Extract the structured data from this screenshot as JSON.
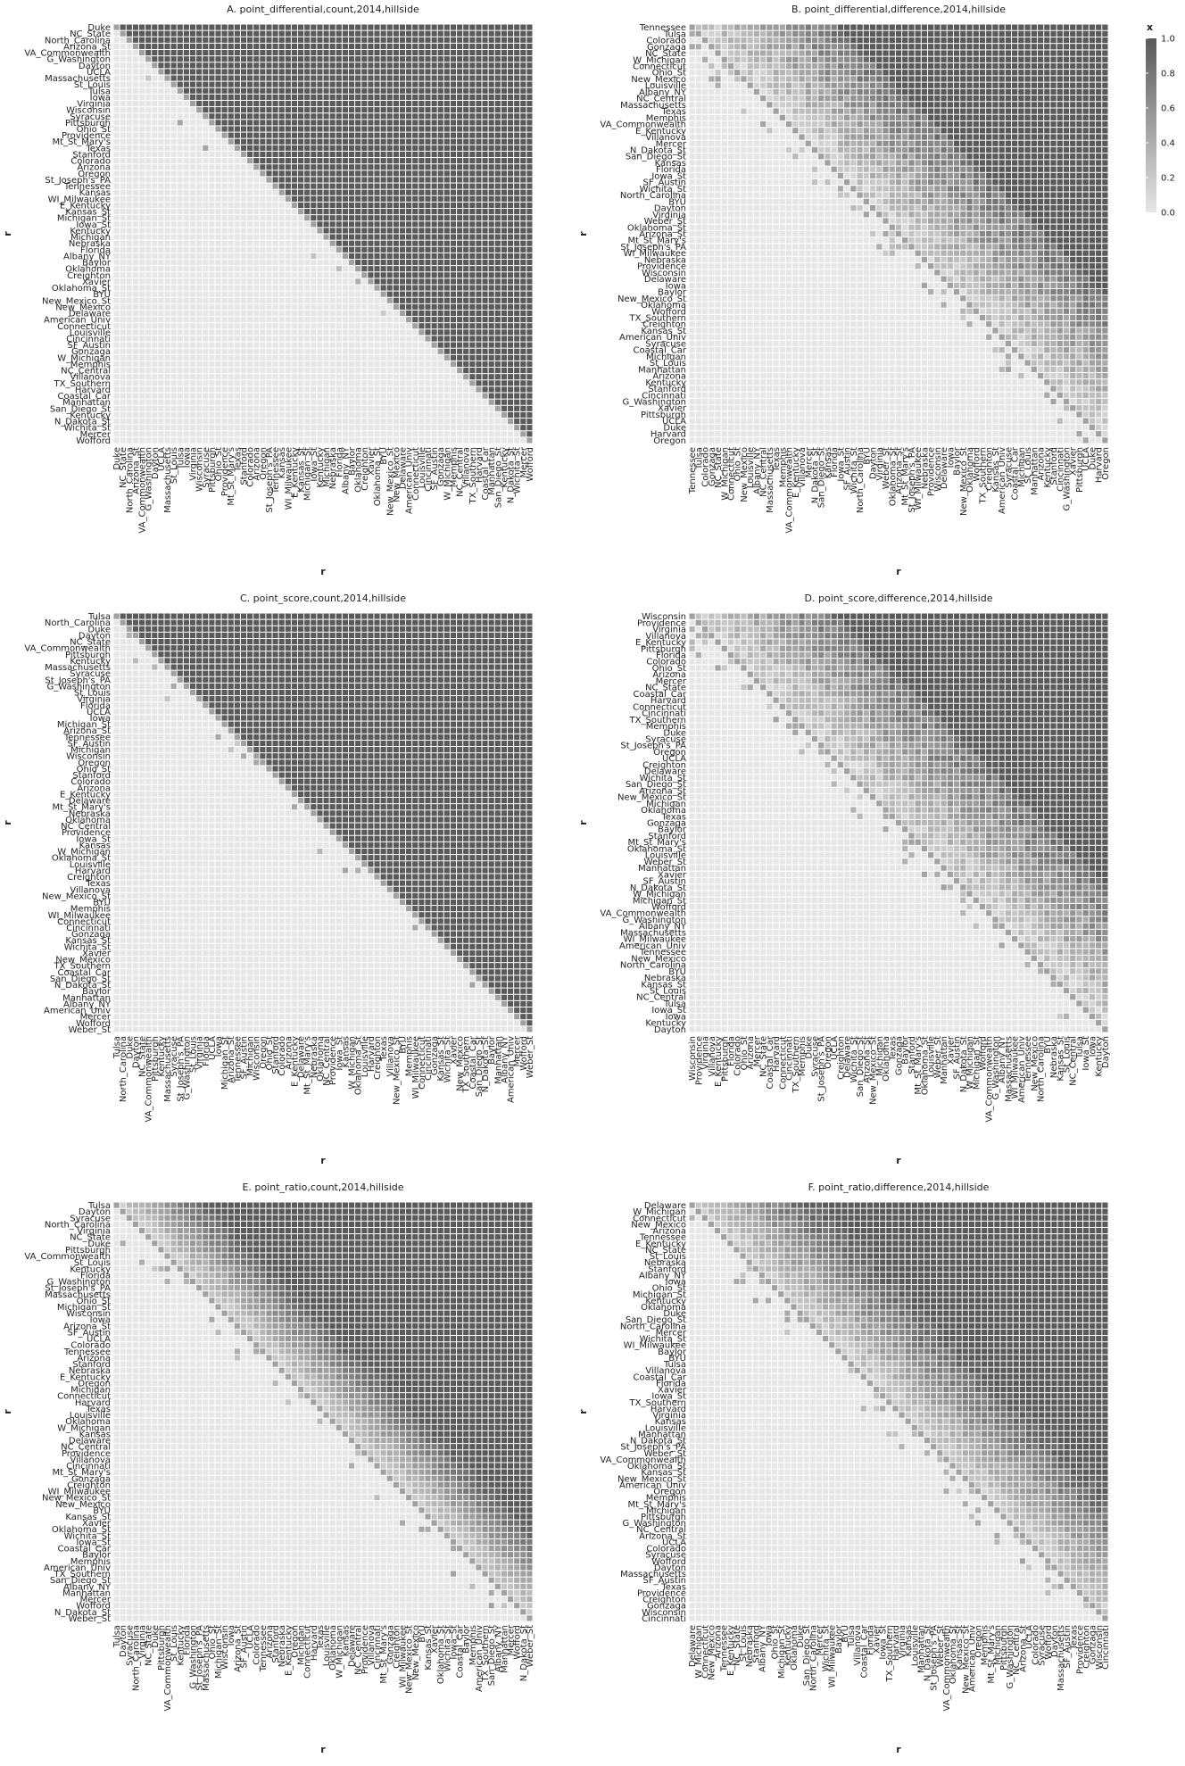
{
  "legend": {
    "title": "x",
    "ticks": [
      "1.0",
      "0.8",
      "0.6",
      "0.4",
      "0.2",
      "0.0"
    ],
    "values": [
      1.0,
      0.8,
      0.6,
      0.4,
      0.2,
      0.0
    ],
    "color_low": "#e6e6e6",
    "color_high": "#5a5a5a"
  },
  "chart_data": [
    {
      "type": "heatmap",
      "title": "A. point_differential,count,2014,hillside",
      "xlabel": "r",
      "ylabel": "r",
      "fuzz": 0.1,
      "teams": [
        "Duke",
        "NC_State",
        "North_Carolina",
        "Arizona_St",
        "VA_Commonwealth",
        "G_Washington",
        "Dayton",
        "UCLA",
        "Massachusetts",
        "St_Louis",
        "Tulsa",
        "Iowa",
        "Virginia",
        "Wisconsin",
        "Syracuse",
        "Pittsburgh",
        "Ohio_St",
        "Providence",
        "Mt_St_Mary's",
        "Texas",
        "Stanford",
        "Colorado",
        "Arizona",
        "Oregon",
        "St_Joseph's_PA",
        "Tennessee",
        "Kansas",
        "WI_Milwaukee",
        "E_Kentucky",
        "Kansas_St",
        "Michigan_St",
        "Iowa_St",
        "Kentucky",
        "Michigan",
        "Nebraska",
        "Florida",
        "Albany_NY",
        "Baylor",
        "Oklahoma",
        "Creighton",
        "Xavier",
        "Oklahoma_St",
        "BYU",
        "New_Mexico_St",
        "New_Mexico",
        "Delaware",
        "American_Univ",
        "Connecticut",
        "Louisville",
        "Cincinnati",
        "SF_Austin",
        "Gonzaga",
        "W_Michigan",
        "Memphis",
        "NC_Central",
        "Villanova",
        "TX_Southern",
        "Harvard",
        "Coastal_Car",
        "Manhattan",
        "San_Diego_St",
        "Kentucky",
        "N_Dakota_St",
        "Wichita_St",
        "Mercer",
        "Wofford"
      ]
    },
    {
      "type": "heatmap",
      "title": "B. point_differential,difference,2014,hillside",
      "xlabel": "r",
      "ylabel": "r",
      "fuzz": 0.5,
      "teams": [
        "Tennessee",
        "Tulsa",
        "Colorado",
        "Gonzaga",
        "NC_State",
        "W_Michigan",
        "Connecticut",
        "Ohio_St",
        "New_Mexico",
        "Louisville",
        "Albany_NY",
        "NC_Central",
        "Massachusetts",
        "Texas",
        "Memphis",
        "VA_Commonwealth",
        "E_Kentucky",
        "Villanova",
        "Mercer",
        "N_Dakota_St",
        "San_Diego_St",
        "Kansas",
        "Florida",
        "Iowa_St",
        "SF_Austin",
        "Wichita_St",
        "North_Carolina",
        "BYU",
        "Dayton",
        "Virginia",
        "Weber_St",
        "Oklahoma_St",
        "Arizona_St",
        "Mt_St_Mary's",
        "St_Joseph's_PA",
        "WI_Milwaukee",
        "Nebraska",
        "Providence",
        "Wisconsin",
        "Delaware",
        "Iowa",
        "Baylor",
        "New_Mexico_St",
        "Oklahoma",
        "Wofford",
        "TX_Southern",
        "Creighton",
        "Kansas_St",
        "American_Univ",
        "Syracuse",
        "Coastal_Car",
        "Michigan",
        "St_Louis",
        "Manhattan",
        "Arizona",
        "Kentucky",
        "Stanford",
        "Cincinnati",
        "G_Washington",
        "Xavier",
        "Pittsburgh",
        "UCLA",
        "Duke",
        "Harvard",
        "Oregon"
      ]
    },
    {
      "type": "heatmap",
      "title": "C. point_score,count,2014,hillside",
      "xlabel": "r",
      "ylabel": "r",
      "fuzz": 0.12,
      "teams": [
        "Tulsa",
        "North_Carolina",
        "Duke",
        "Dayton",
        "NC_State",
        "VA_Commonwealth",
        "Pittsburgh",
        "Kentucky",
        "Massachusetts",
        "Syracuse",
        "St_Joseph's_PA",
        "G_Washington",
        "St_Louis",
        "Virginia",
        "Florida",
        "UCLA",
        "Iowa",
        "Michigan_St",
        "Arizona_St",
        "Tennessee",
        "SF_Austin",
        "Michigan",
        "Wisconsin",
        "Oregon",
        "Ohio_St",
        "Stanford",
        "Colorado",
        "Arizona",
        "E_Kentucky",
        "Delaware",
        "Mt_St_Mary's",
        "Nebraska",
        "Oklahoma",
        "NC_Central",
        "Providence",
        "Iowa_St",
        "Kansas",
        "W_Michigan",
        "Oklahoma_St",
        "Louisville",
        "Harvard",
        "Creighton",
        "Texas",
        "Villanova",
        "New_Mexico_St",
        "BYU",
        "Memphis",
        "WI_Milwaukee",
        "Connecticut",
        "Cincinnati",
        "Gonzaga",
        "Kansas_St",
        "Wichita_St",
        "Xavier",
        "New_Mexico",
        "TX_Southern",
        "Coastal_Car",
        "San_Diego_St",
        "N_Dakota_St",
        "Baylor",
        "Manhattan",
        "Albany_NY",
        "American_Univ",
        "Mercer",
        "Wofford",
        "Weber_St"
      ]
    },
    {
      "type": "heatmap",
      "title": "D. point_score,difference,2014,hillside",
      "xlabel": "r",
      "ylabel": "r",
      "fuzz": 0.5,
      "teams": [
        "Wisconsin",
        "Providence",
        "Virginia",
        "Villanova",
        "E_Kentucky",
        "Pittsburgh",
        "Florida",
        "Colorado",
        "Ohio_St",
        "Arizona",
        "Mercer",
        "NC_State",
        "Coastal_Car",
        "Harvard",
        "Connecticut",
        "Cincinnati",
        "TX_Southern",
        "Memphis",
        "Duke",
        "Syracuse",
        "St_Joseph's_PA",
        "Oregon",
        "UCLA",
        "Creighton",
        "Delaware",
        "Wichita_St",
        "San_Diego_St",
        "Arizona_St",
        "New_Mexico_St",
        "Michigan",
        "Oklahoma",
        "Texas",
        "Gonzaga",
        "Baylor",
        "Stanford",
        "Mt_St_Mary's",
        "Oklahoma_St",
        "Louisville",
        "Weber_St",
        "Manhattan",
        "Xavier",
        "SF_Austin",
        "N_Dakota_St",
        "W_Michigan",
        "Michigan_St",
        "Wofford",
        "VA_Commonwealth",
        "G_Washington",
        "Albany_NY",
        "Massachusetts",
        "WI_Milwaukee",
        "American_Univ",
        "Tennessee",
        "New_Mexico",
        "North_Carolina",
        "BYU",
        "Nebraska",
        "Kansas_St",
        "St_Louis",
        "NC_Central",
        "Tulsa",
        "Iowa_St",
        "Iowa",
        "Kentucky",
        "Dayton"
      ]
    },
    {
      "type": "heatmap",
      "title": "E. point_ratio,count,2014,hillside",
      "xlabel": "r",
      "ylabel": "r",
      "fuzz": 0.25,
      "teams": [
        "Tulsa",
        "Dayton",
        "Syracuse",
        "North_Carolina",
        "Virginia",
        "NC_State",
        "Duke",
        "Pittsburgh",
        "VA_Commonwealth",
        "St_Louis",
        "Kentucky",
        "Florida",
        "G_Washington",
        "St_Joseph's_PA",
        "Massachusetts",
        "Ohio_St",
        "Michigan_St",
        "Wisconsin",
        "Iowa",
        "Arizona_St",
        "SF_Austin",
        "UCLA",
        "Colorado",
        "Tennessee",
        "Arizona",
        "Stanford",
        "Nebraska",
        "E_Kentucky",
        "Oregon",
        "Michigan",
        "Connecticut",
        "Harvard",
        "Texas",
        "Louisville",
        "Oklahoma",
        "W_Michigan",
        "Kansas",
        "Delaware",
        "NC_Central",
        "Providence",
        "Villanova",
        "Cincinnati",
        "Mt_St_Mary's",
        "Gonzaga",
        "Creighton",
        "WI_Milwaukee",
        "New_Mexico_St",
        "New_Mexico",
        "BYU",
        "Kansas_St",
        "Xavier",
        "Oklahoma_St",
        "Wichita_St",
        "Iowa_St",
        "Coastal_Car",
        "Baylor",
        "Memphis",
        "American_Univ",
        "TX_Southern",
        "San_Diego_St",
        "Albany_NY",
        "Manhattan",
        "Mercer",
        "Wofford",
        "N_Dakota_St",
        "Weber_St"
      ]
    },
    {
      "type": "heatmap",
      "title": "F. point_ratio,difference,2014,hillside",
      "xlabel": "r",
      "ylabel": "r",
      "fuzz": 0.35,
      "teams": [
        "Delaware",
        "W_Michigan",
        "Connecticut",
        "New_Mexico",
        "Arizona",
        "Tennessee",
        "E_Kentucky",
        "NC_State",
        "St_Louis",
        "Nebraska",
        "Stanford",
        "Albany_NY",
        "Iowa",
        "Ohio_St",
        "Michigan_St",
        "Kentucky",
        "Oklahoma",
        "Duke",
        "San_Diego_St",
        "North_Carolina",
        "Mercer",
        "Wichita_St",
        "WI_Milwaukee",
        "Baylor",
        "BYU",
        "Tulsa",
        "Villanova",
        "Coastal_Car",
        "Florida",
        "Xavier",
        "Iowa_St",
        "TX_Southern",
        "Harvard",
        "Virginia",
        "Kansas",
        "Louisville",
        "Manhattan",
        "N_Dakota_St",
        "St_Joseph's_PA",
        "Weber_St",
        "VA_Commonwealth",
        "Oklahoma_St",
        "Kansas_St",
        "New_Mexico_St",
        "American_Univ",
        "Oregon",
        "Memphis",
        "Mt_St_Mary's",
        "Michigan",
        "Pittsburgh",
        "G_Washington",
        "NC_Central",
        "Arizona_St",
        "UCLA",
        "Colorado",
        "Syracuse",
        "Wofford",
        "Dayton",
        "Massachusetts",
        "SF_Austin",
        "Texas",
        "Providence",
        "Creighton",
        "Gonzaga",
        "Wisconsin",
        "Cincinnati"
      ]
    }
  ]
}
